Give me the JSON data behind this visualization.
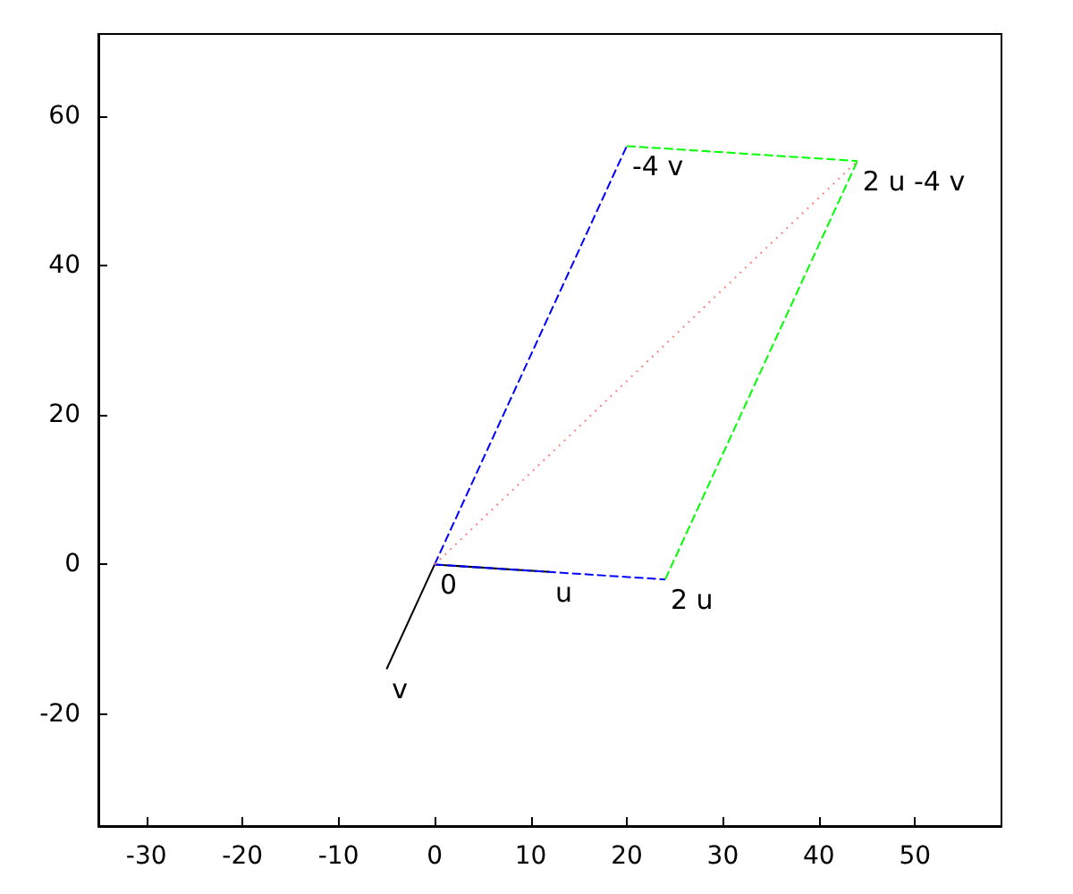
{
  "chart_data": {
    "type": "line",
    "xlim": [
      -35,
      59
    ],
    "ylim": [
      -35,
      71
    ],
    "xticks": [
      -30,
      -20,
      -10,
      0,
      10,
      20,
      30,
      40,
      50
    ],
    "yticks": [
      -20,
      0,
      20,
      40,
      60
    ],
    "grid": false,
    "marker": "none",
    "series": [
      {
        "color": "#000000",
        "line_style": "solid",
        "x": [
          0,
          12
        ],
        "values": [
          0,
          -1
        ]
      },
      {
        "color": "#000000",
        "line_style": "solid",
        "x": [
          0,
          -5
        ],
        "values": [
          0,
          -14
        ]
      },
      {
        "color": "#0000ff",
        "line_style": "dashed",
        "x": [
          0,
          24
        ],
        "values": [
          0,
          -2
        ]
      },
      {
        "color": "#0000ff",
        "line_style": "dashed",
        "x": [
          0,
          20
        ],
        "values": [
          0,
          56
        ]
      },
      {
        "color": "#00ff00",
        "line_style": "dashed",
        "x": [
          24,
          44
        ],
        "values": [
          -2,
          54
        ]
      },
      {
        "color": "#00ff00",
        "line_style": "dashed",
        "x": [
          20,
          44
        ],
        "values": [
          56,
          54
        ]
      },
      {
        "color": "#ff8080",
        "line_style": "dotted",
        "x": [
          0,
          44
        ],
        "values": [
          0,
          54
        ]
      }
    ],
    "annotations": [
      {
        "text": "0",
        "x": 0,
        "y": 0
      },
      {
        "text": "u",
        "x": 12,
        "y": -1
      },
      {
        "text": "v",
        "x": -5,
        "y": -14
      },
      {
        "text": "2 u",
        "x": 24,
        "y": -2
      },
      {
        "text": "-4 v",
        "x": 20,
        "y": 56
      },
      {
        "text": "2 u -4 v",
        "x": 44,
        "y": 54
      }
    ]
  }
}
